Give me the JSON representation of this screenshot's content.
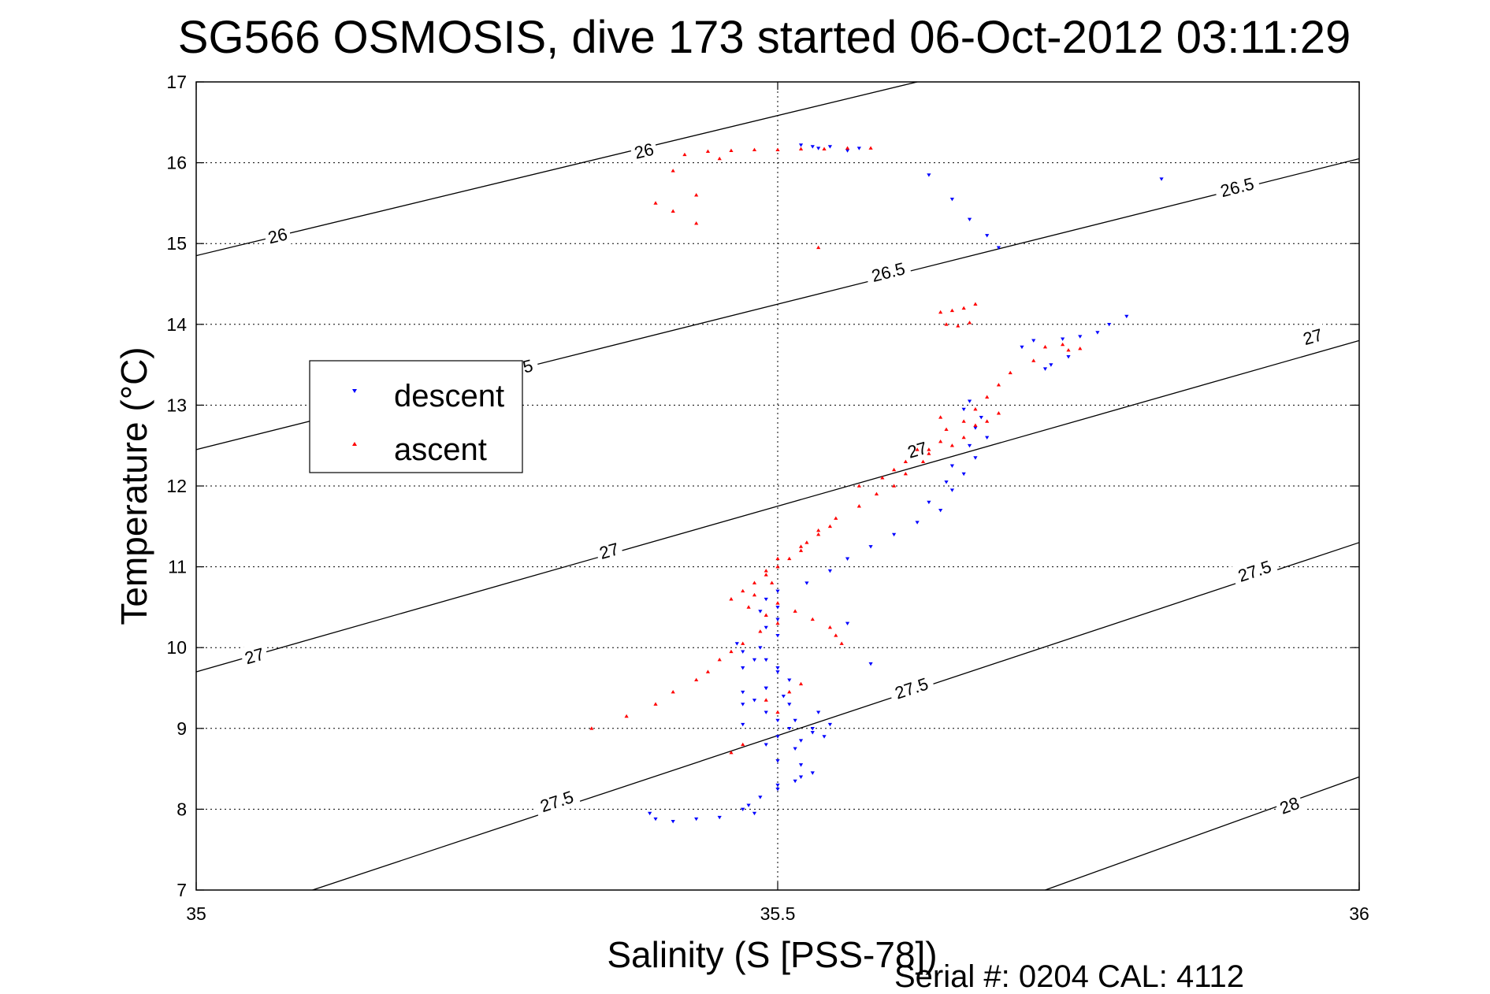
{
  "chart_data": {
    "type": "scatter",
    "title": "SG566 OSMOSIS, dive 173 started 06-Oct-2012 03:11:29",
    "xlabel": "Salinity (S [PSS-78])",
    "ylabel": "Temperature (°C)",
    "xlim": [
      35,
      36
    ],
    "ylim": [
      7,
      17
    ],
    "xticks": [
      "35",
      "35.5",
      "36"
    ],
    "yticks": [
      "7",
      "8",
      "9",
      "10",
      "11",
      "12",
      "13",
      "14",
      "15",
      "16",
      "17"
    ],
    "grid": true,
    "legend_position": "middle-left",
    "footer": "Serial #: 0204  CAL: 4112",
    "colors": {
      "descent": "#0000ff",
      "ascent": "#ff0000",
      "contour": "#000000"
    },
    "density_contours": [
      {
        "level": "26",
        "line": [
          [
            35.0,
            14.85
          ],
          [
            35.62,
            17.0
          ]
        ],
        "labels": [
          [
            35.07,
            15.1
          ],
          [
            35.385,
            16.15
          ]
        ]
      },
      {
        "level": "26.5",
        "line": [
          [
            35.0,
            12.45
          ],
          [
            36.0,
            16.05
          ]
        ],
        "labels": [
          [
            35.275,
            13.45
          ],
          [
            35.595,
            14.65
          ],
          [
            35.895,
            15.7
          ]
        ]
      },
      {
        "level": "27",
        "line": [
          [
            35.0,
            9.7
          ],
          [
            36.0,
            13.8
          ]
        ],
        "labels": [
          [
            35.05,
            9.9
          ],
          [
            35.355,
            11.2
          ],
          [
            35.62,
            12.45
          ],
          [
            35.96,
            13.85
          ]
        ]
      },
      {
        "level": "27.5",
        "line": [
          [
            35.1,
            7.0
          ],
          [
            36.0,
            11.3
          ]
        ],
        "labels": [
          [
            35.31,
            8.1
          ],
          [
            35.615,
            9.5
          ],
          [
            35.91,
            10.95
          ]
        ]
      },
      {
        "level": "28",
        "line": [
          [
            35.73,
            7.0
          ],
          [
            36.0,
            8.4
          ]
        ],
        "labels": [
          [
            35.94,
            8.05
          ]
        ]
      }
    ],
    "series": [
      {
        "name": "descent",
        "marker": "triangle-down",
        "x": [
          35.52,
          35.53,
          35.535,
          35.545,
          35.56,
          35.57,
          35.63,
          35.65,
          35.665,
          35.68,
          35.69,
          35.71,
          35.665,
          35.66,
          35.675,
          35.67,
          35.68,
          35.665,
          35.67,
          35.65,
          35.66,
          35.645,
          35.65,
          35.63,
          35.64,
          35.62,
          35.6,
          35.58,
          35.56,
          35.545,
          35.525,
          35.5,
          35.49,
          35.485,
          35.5,
          35.49,
          35.5,
          35.485,
          35.49,
          35.47,
          35.5,
          35.51,
          35.49,
          35.505,
          35.47,
          35.49,
          35.5,
          35.47,
          35.51,
          35.5,
          35.49,
          35.515,
          35.5,
          35.52,
          35.53,
          35.52,
          35.515,
          35.5,
          35.54,
          35.53,
          35.515,
          35.5,
          35.485,
          35.475,
          35.48,
          35.47,
          35.45,
          35.43,
          35.41,
          35.395,
          35.39,
          35.465,
          35.47,
          35.48,
          35.5,
          35.58,
          35.56,
          35.5,
          35.49,
          35.47,
          35.48,
          35.51,
          35.535,
          35.545,
          35.53,
          35.52,
          35.72,
          35.745,
          35.76,
          35.775,
          35.785,
          35.8,
          35.83,
          35.75,
          35.735,
          35.73
        ],
        "y": [
          16.22,
          16.2,
          16.18,
          16.2,
          16.15,
          16.18,
          15.85,
          15.55,
          15.3,
          15.1,
          14.95,
          13.72,
          13.05,
          12.95,
          12.85,
          12.72,
          12.6,
          12.5,
          12.35,
          12.25,
          12.15,
          12.05,
          11.95,
          11.8,
          11.7,
          11.55,
          11.4,
          11.25,
          11.1,
          10.95,
          10.8,
          10.7,
          10.6,
          10.45,
          10.35,
          10.25,
          10.15,
          10.0,
          9.85,
          9.75,
          9.7,
          9.6,
          9.5,
          9.4,
          9.3,
          9.2,
          9.1,
          9.05,
          9.0,
          8.9,
          8.8,
          8.75,
          8.6,
          8.55,
          8.45,
          8.4,
          8.35,
          8.3,
          8.9,
          9.0,
          9.1,
          8.25,
          8.15,
          8.05,
          7.95,
          8.0,
          7.9,
          7.88,
          7.85,
          7.88,
          7.95,
          10.05,
          9.95,
          9.85,
          9.75,
          9.8,
          10.3,
          10.5,
          9.5,
          9.45,
          9.35,
          9.3,
          9.2,
          9.05,
          8.95,
          8.85,
          13.8,
          13.82,
          13.85,
          13.9,
          14.0,
          14.1,
          15.8,
          13.6,
          13.5,
          13.45
        ]
      },
      {
        "name": "ascent",
        "marker": "triangle-up",
        "x": [
          35.42,
          35.44,
          35.46,
          35.48,
          35.5,
          35.52,
          35.54,
          35.56,
          35.58,
          35.41,
          35.395,
          35.43,
          35.43,
          35.41,
          35.45,
          35.535,
          35.64,
          35.65,
          35.66,
          35.67,
          35.645,
          35.655,
          35.665,
          35.73,
          35.745,
          35.75,
          35.76,
          35.72,
          35.7,
          35.69,
          35.68,
          35.67,
          35.66,
          35.645,
          35.63,
          35.64,
          35.625,
          35.61,
          35.6,
          35.585,
          35.57,
          35.55,
          35.535,
          35.52,
          35.5,
          35.49,
          35.495,
          35.48,
          35.475,
          35.49,
          35.5,
          35.485,
          35.47,
          35.46,
          35.45,
          35.44,
          35.43,
          35.41,
          35.395,
          35.37,
          35.34,
          35.57,
          35.59,
          35.6,
          35.61,
          35.63,
          35.65,
          35.66,
          35.62,
          35.64,
          35.67,
          35.68,
          35.69,
          35.525,
          35.535,
          35.545,
          35.52,
          35.51,
          35.5,
          35.49,
          35.48,
          35.47,
          35.46,
          35.5,
          35.515,
          35.53,
          35.545,
          35.55,
          35.555,
          35.52,
          35.51,
          35.49,
          35.5,
          35.47,
          35.46
        ],
        "y": [
          16.1,
          16.14,
          16.15,
          16.16,
          16.16,
          16.17,
          16.17,
          16.18,
          16.18,
          15.9,
          15.5,
          15.6,
          15.25,
          15.4,
          16.05,
          14.95,
          14.15,
          14.17,
          14.2,
          14.25,
          14.0,
          13.98,
          14.02,
          13.72,
          13.75,
          13.68,
          13.7,
          13.55,
          13.4,
          13.25,
          13.1,
          12.95,
          12.8,
          12.7,
          12.45,
          12.55,
          12.3,
          12.15,
          12.0,
          11.9,
          11.75,
          11.6,
          11.45,
          11.25,
          11.1,
          10.95,
          10.8,
          10.65,
          10.5,
          10.4,
          10.3,
          10.2,
          10.05,
          9.95,
          9.85,
          9.7,
          9.6,
          9.45,
          9.3,
          9.15,
          9.0,
          12.0,
          12.1,
          12.2,
          12.3,
          12.4,
          12.5,
          12.6,
          12.45,
          12.85,
          12.75,
          12.8,
          12.9,
          11.3,
          11.4,
          11.5,
          11.2,
          11.1,
          11.0,
          10.9,
          10.8,
          10.7,
          10.6,
          10.55,
          10.45,
          10.35,
          10.25,
          10.15,
          10.05,
          9.55,
          9.45,
          9.35,
          9.2,
          8.8,
          8.7
        ]
      }
    ]
  }
}
